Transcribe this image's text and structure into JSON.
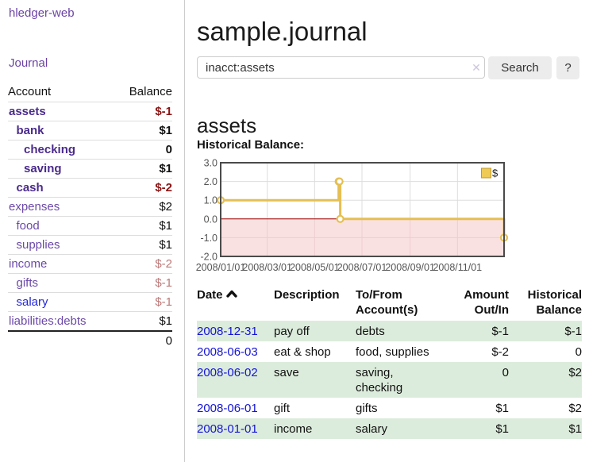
{
  "sidebar": {
    "app_title": "hledger-web",
    "journal_link": "Journal",
    "accounts_table": {
      "header_account": "Account",
      "header_balance": "Balance",
      "rows": [
        {
          "name": "assets",
          "depth": 1,
          "balance": "$-1",
          "name_style": "in-acct",
          "bal_style": "neg-strong"
        },
        {
          "name": "bank",
          "depth": 2,
          "balance": "$1",
          "name_style": "in-acct",
          "bal_style": "b"
        },
        {
          "name": "checking",
          "depth": 3,
          "balance": "0",
          "name_style": "in-acct",
          "bal_style": "b"
        },
        {
          "name": "saving",
          "depth": 3,
          "balance": "$1",
          "name_style": "in-acct",
          "bal_style": "b"
        },
        {
          "name": "cash",
          "depth": 2,
          "balance": "$-2",
          "name_style": "in-acct",
          "bal_style": "neg-strong"
        },
        {
          "name": "expenses",
          "depth": 1,
          "balance": "$2",
          "name_style": "plain",
          "bal_style": "plain"
        },
        {
          "name": "food",
          "depth": 2,
          "balance": "$1",
          "name_style": "plain",
          "bal_style": "plain"
        },
        {
          "name": "supplies",
          "depth": 2,
          "balance": "$1",
          "name_style": "plain",
          "bal_style": "plain"
        },
        {
          "name": "income",
          "depth": 1,
          "balance": "$-2",
          "name_style": "plain",
          "bal_style": "neg-soft"
        },
        {
          "name": "gifts",
          "depth": 2,
          "balance": "$-1",
          "name_style": "plain",
          "bal_style": "neg-soft"
        },
        {
          "name": "salary",
          "depth": 2,
          "balance": "$-1",
          "name_style": "blue",
          "bal_style": "neg-soft"
        },
        {
          "name": "liabilities:debts",
          "depth": 1,
          "balance": "$1",
          "name_style": "plain",
          "bal_style": "plain"
        }
      ],
      "total": "0"
    }
  },
  "main": {
    "page_title": "sample.journal",
    "search": {
      "value": "inacct:assets",
      "clear_icon": "✕",
      "search_button": "Search",
      "help_button": "?"
    },
    "account_heading": "assets",
    "chart_label": "Historical Balance:"
  },
  "chart_data": {
    "type": "line",
    "title": "Historical Balance",
    "step": true,
    "legend": "$",
    "legend_position": "top-right",
    "grid": true,
    "x_range": [
      "2008-01-01",
      "2008-12-31"
    ],
    "ylim": [
      -2.0,
      3.0
    ],
    "yticks": [
      "3.0",
      "2.0",
      "1.0",
      "0.0",
      "-1.0",
      "-2.0"
    ],
    "ytick_values": [
      3,
      2,
      1,
      0,
      -1,
      -2
    ],
    "xticks": [
      {
        "label": "2008/01/01",
        "date": "2008-01-01"
      },
      {
        "label": "2008/03/01",
        "date": "2008-03-01"
      },
      {
        "label": "2008/05/01",
        "date": "2008-05-01"
      },
      {
        "label": "2008/07/01",
        "date": "2008-07-01"
      },
      {
        "label": "2008/09/01",
        "date": "2008-09-01"
      },
      {
        "label": "2008/11/01",
        "date": "2008-11-01"
      }
    ],
    "series": [
      {
        "name": "$",
        "points": [
          {
            "date": "2008-01-01",
            "value": 1
          },
          {
            "date": "2008-06-01",
            "value": 2
          },
          {
            "date": "2008-06-02",
            "value": 2
          },
          {
            "date": "2008-06-03",
            "value": 0
          },
          {
            "date": "2008-12-31",
            "value": -1
          }
        ]
      }
    ],
    "colors": {
      "line": "#e5bf52",
      "marker_fill": "#ffffff",
      "negative_area": "#f6c3c3",
      "zero_line": "#a00000",
      "grid_line": "#dddddd",
      "border": "#4a4a4a",
      "tick_text": "#555555",
      "legend_fill": "#efca55",
      "legend_border": "#bf9a30"
    }
  },
  "register_table": {
    "headers": {
      "date": "Date",
      "description": "Description",
      "accounts": "To/From Account(s)",
      "amount": "Amount Out/In",
      "balance": "Historical Balance"
    },
    "rows": [
      {
        "date": "2008-12-31",
        "description": "pay off",
        "accounts": "debts",
        "amount": "$-1",
        "amount_neg": true,
        "balance": "$-1",
        "balance_neg": true
      },
      {
        "date": "2008-06-03",
        "description": "eat & shop",
        "accounts": "food, supplies",
        "amount": "$-2",
        "amount_neg": true,
        "balance": "0",
        "balance_neg": false
      },
      {
        "date": "2008-06-02",
        "description": "save",
        "accounts": "saving, checking",
        "amount": "0",
        "amount_neg": false,
        "balance": "$2",
        "balance_neg": false
      },
      {
        "date": "2008-06-01",
        "description": "gift",
        "accounts": "gifts",
        "amount": "$1",
        "amount_neg": false,
        "balance": "$2",
        "balance_neg": false
      },
      {
        "date": "2008-01-01",
        "description": "income",
        "accounts": "salary",
        "amount": "$1",
        "amount_neg": false,
        "balance": "$1",
        "balance_neg": false
      }
    ]
  }
}
